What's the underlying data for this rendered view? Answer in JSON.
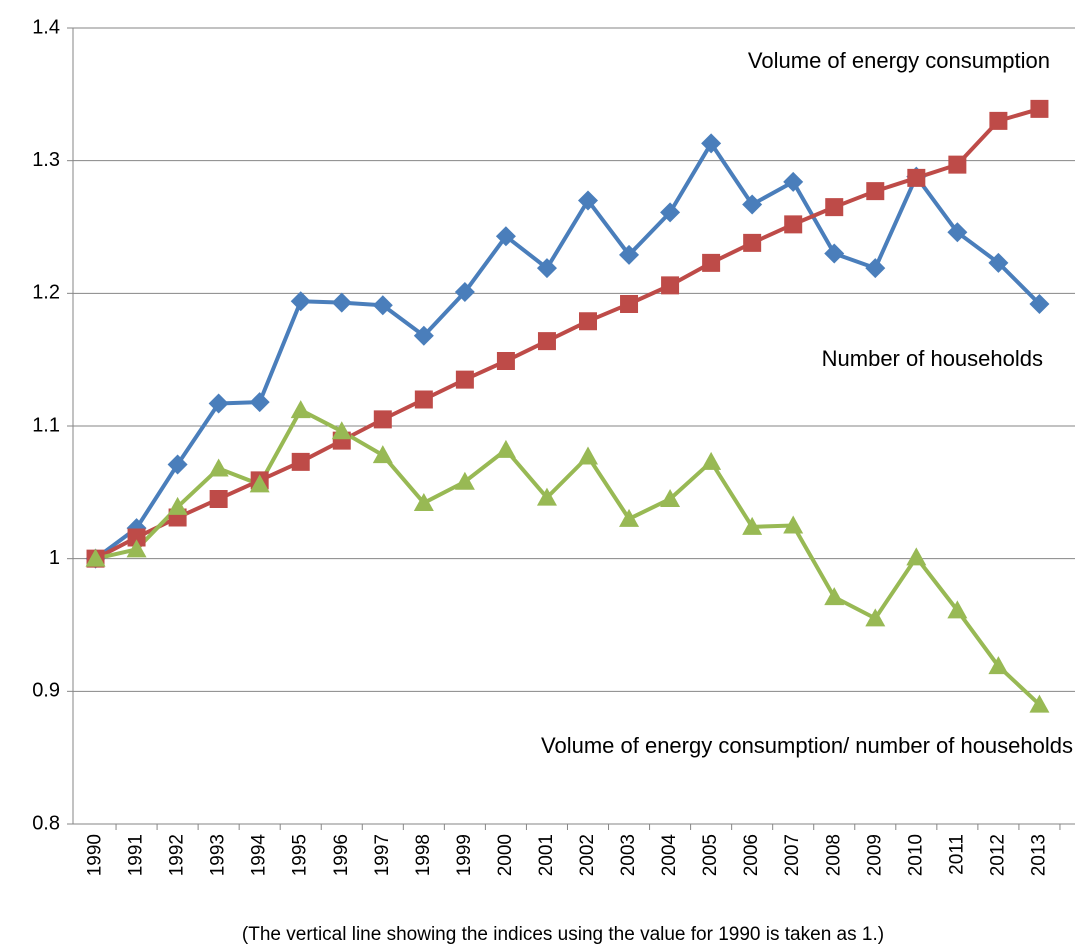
{
  "chart_data": {
    "type": "line",
    "categories": [
      "1990",
      "1991",
      "1992",
      "1993",
      "1994",
      "1995",
      "1996",
      "1997",
      "1998",
      "1999",
      "2000",
      "2001",
      "2002",
      "2003",
      "2004",
      "2005",
      "2006",
      "2007",
      "2008",
      "2009",
      "2010",
      "2011",
      "2012",
      "2013"
    ],
    "series": [
      {
        "name": "Volume of energy consumption",
        "color": "#4a7ebb",
        "marker": "diamond",
        "values": [
          1.0,
          1.023,
          1.071,
          1.117,
          1.118,
          1.194,
          1.193,
          1.191,
          1.168,
          1.201,
          1.243,
          1.219,
          1.27,
          1.229,
          1.261,
          1.313,
          1.267,
          1.284,
          1.23,
          1.219,
          1.288,
          1.246,
          1.223,
          1.192
        ]
      },
      {
        "name": "Number of households",
        "color": "#be4b48",
        "marker": "square",
        "values": [
          1.0,
          1.016,
          1.031,
          1.045,
          1.059,
          1.073,
          1.089,
          1.105,
          1.12,
          1.135,
          1.149,
          1.164,
          1.179,
          1.192,
          1.206,
          1.223,
          1.238,
          1.252,
          1.265,
          1.277,
          1.287,
          1.297,
          1.33,
          1.339
        ]
      },
      {
        "name": "Volume of energy consumption/ number of households",
        "color": "#98b954",
        "marker": "triangle",
        "values": [
          1.0,
          1.007,
          1.039,
          1.068,
          1.056,
          1.112,
          1.096,
          1.078,
          1.042,
          1.058,
          1.082,
          1.046,
          1.077,
          1.03,
          1.045,
          1.073,
          1.024,
          1.025,
          0.971,
          0.955,
          1.001,
          0.961,
          0.919,
          0.89
        ]
      }
    ],
    "ylim": [
      0.8,
      1.4
    ],
    "yticks": [
      0.8,
      0.9,
      1,
      1.1,
      1.2,
      1.3,
      1.4
    ],
    "grid": true,
    "footnote": "(The vertical line showing the indices using the value for 1990 is taken as 1.)"
  }
}
